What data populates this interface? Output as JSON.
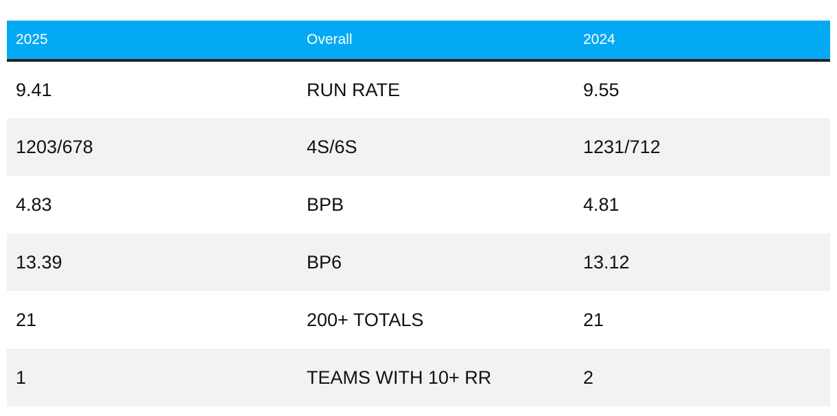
{
  "table": {
    "headers": [
      "2025",
      "Overall",
      "2024"
    ],
    "rows": [
      [
        "9.41",
        "RUN RATE",
        "9.55"
      ],
      [
        "1203/678",
        "4S/6S",
        "1231/712"
      ],
      [
        "4.83",
        "BPB",
        "4.81"
      ],
      [
        "13.39",
        "BP6",
        "13.12"
      ],
      [
        "21",
        "200+ TOTALS",
        "21"
      ],
      [
        "1",
        "TEAMS WITH 10+ RR",
        "2"
      ]
    ]
  },
  "colors": {
    "header_background": "#04a9f4",
    "header_text": "#ffffff",
    "header_rule": "#222222",
    "alt_row_background": "#f2f2f2"
  }
}
